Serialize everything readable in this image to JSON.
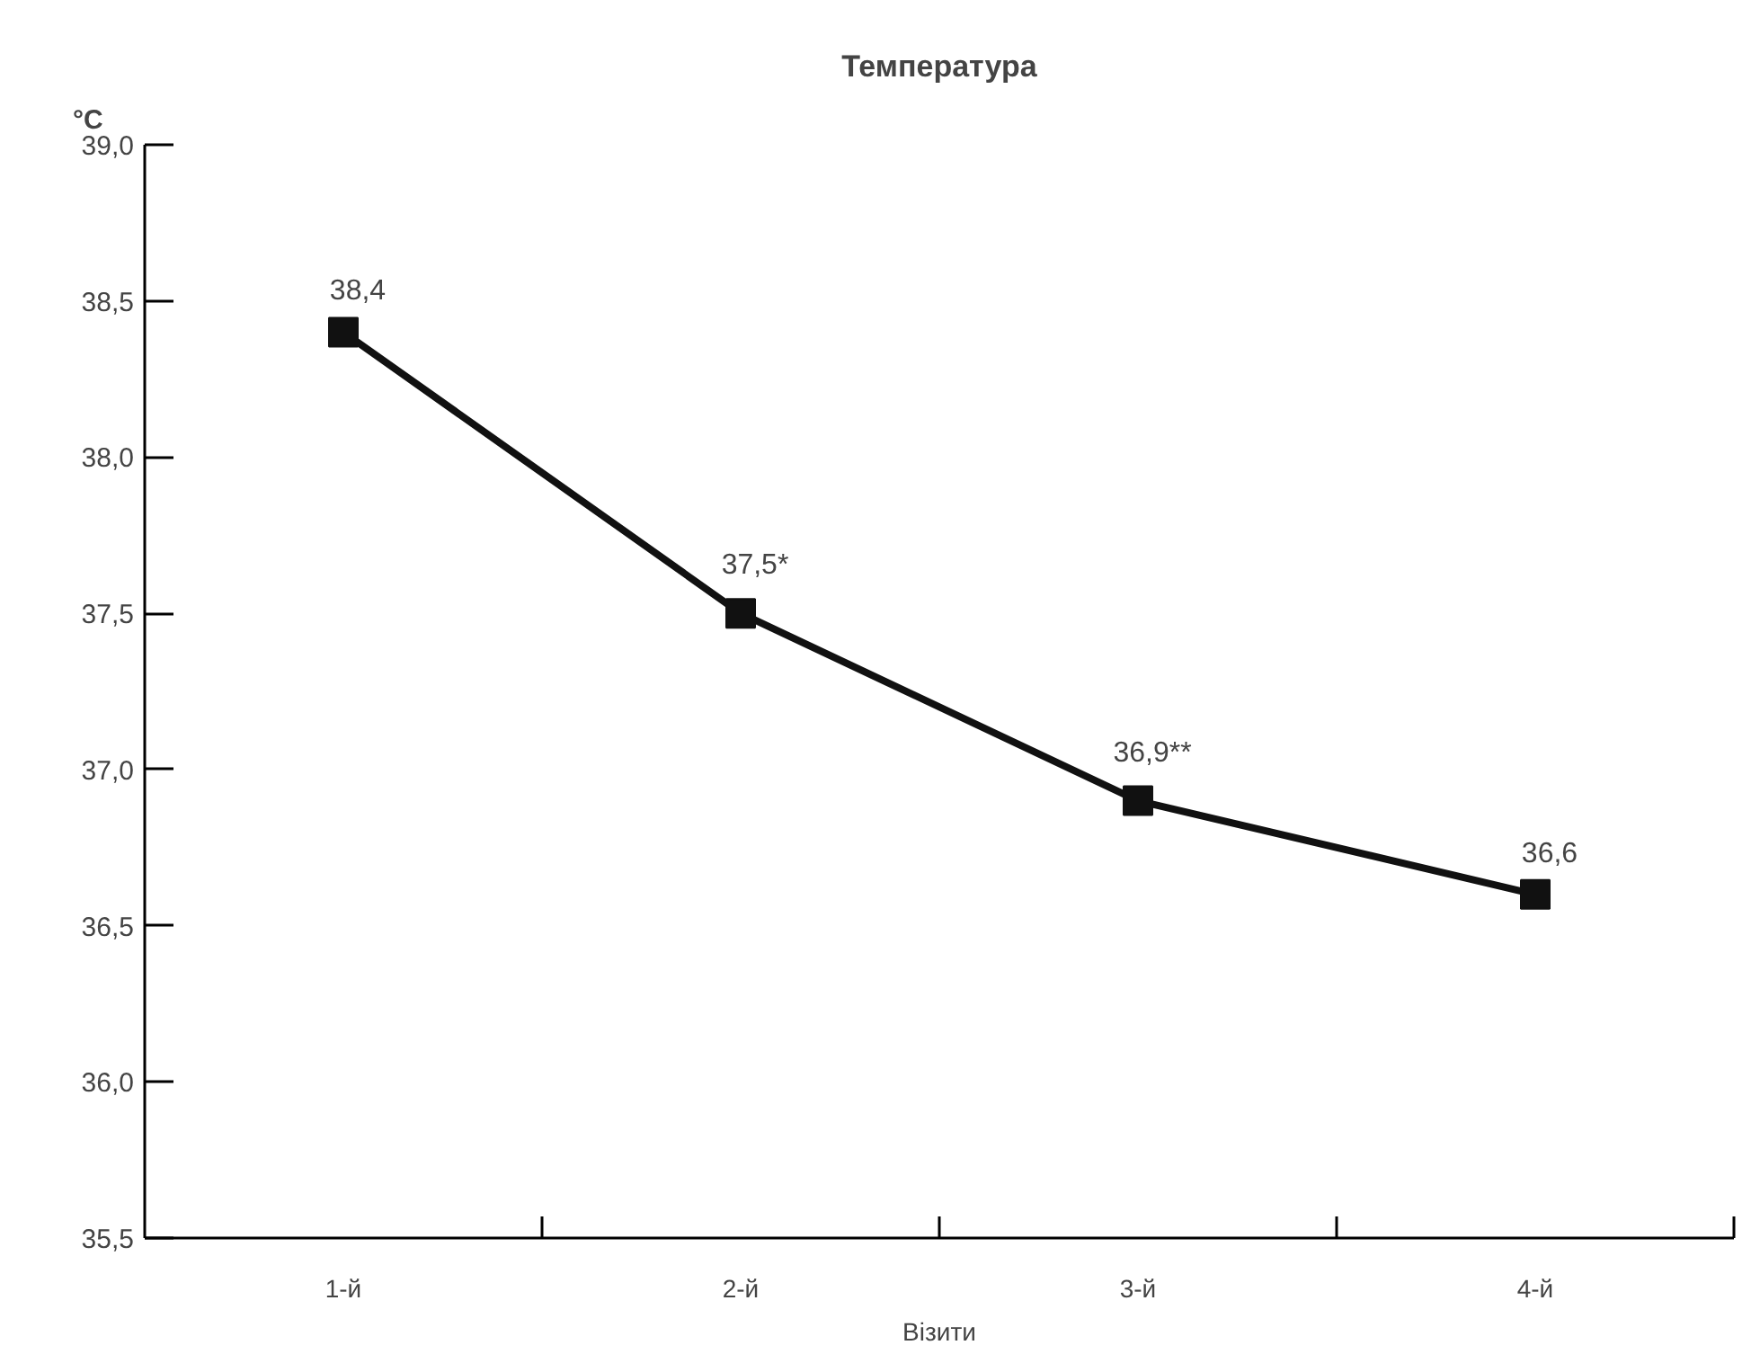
{
  "chart_data": {
    "type": "line",
    "title": "Температура",
    "ylabel": "°C",
    "xlabel": "Візити",
    "categories": [
      "1-й",
      "2-й",
      "3-й",
      "4-й"
    ],
    "series": [
      {
        "color": "#111111",
        "values": [
          38.4,
          37.5,
          36.9,
          36.6
        ],
        "value_labels": [
          "38,4",
          "37,5*",
          "36,9**",
          "36,6"
        ]
      }
    ],
    "ylim": [
      35.5,
      39.0
    ],
    "yticks": [
      {
        "value": 35.5,
        "label": "35,5"
      },
      {
        "value": 36.0,
        "label": "36,0"
      },
      {
        "value": 36.5,
        "label": "36,5"
      },
      {
        "value": 37.0,
        "label": "37,0"
      },
      {
        "value": 37.5,
        "label": "37,5"
      },
      {
        "value": 38.0,
        "label": "38,0"
      },
      {
        "value": 38.5,
        "label": "38,5"
      },
      {
        "value": 39.0,
        "label": "39,0"
      }
    ],
    "grid": false,
    "marker": "square",
    "line_style": "solid"
  }
}
